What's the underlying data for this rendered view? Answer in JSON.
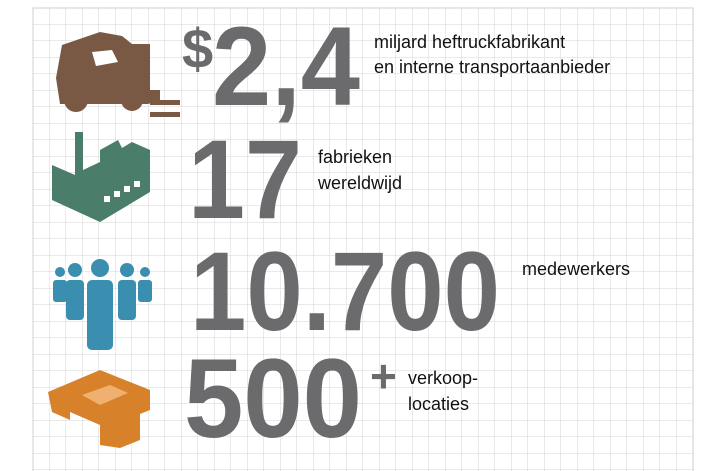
{
  "rows": [
    {
      "prefix": "$",
      "number": "2,4",
      "lines": [
        "miljard heftruckfabrikant",
        "en interne transportaanbieder"
      ]
    },
    {
      "number": "17",
      "lines": [
        "fabrieken",
        "wereldwijd"
      ]
    },
    {
      "number": "10.700",
      "lines": [
        "medewerkers"
      ]
    },
    {
      "number": "500",
      "suffix": "+",
      "lines": [
        "verkoop-",
        "locaties"
      ]
    }
  ]
}
